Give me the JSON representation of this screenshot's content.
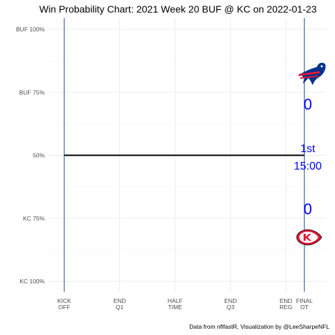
{
  "chart_data": {
    "type": "line",
    "title": "Win Probability Chart: 2021 Week 20 BUF @ KC on 2022-01-23",
    "caption": "Data from nflfastR, Visualization by @LeeSharpeNFL",
    "y_tick_labels": [
      "BUF 100%",
      "BUF 75%",
      "50%",
      "KC 75%",
      "KC 100%"
    ],
    "y_tick_values": [
      100,
      75,
      50,
      25,
      0
    ],
    "ylim": [
      0,
      100
    ],
    "x_ticks": [
      {
        "value": 0,
        "line1": "KICK",
        "line2": "OFF"
      },
      {
        "value": 900,
        "line1": "END",
        "line2": "Q1"
      },
      {
        "value": 1800,
        "line1": "HALF",
        "line2": "TIME"
      },
      {
        "value": 2700,
        "line1": "END",
        "line2": "Q3"
      },
      {
        "value": 3600,
        "line1": "END",
        "line2": "REG"
      },
      {
        "value": 3900,
        "line1": "FINAL",
        "line2": "OT"
      }
    ],
    "xlim": [
      -250,
      4250
    ],
    "vlines_x": [
      0,
      3900
    ],
    "series": [
      {
        "x": [
          0,
          3900
        ],
        "y": [
          50,
          50
        ]
      }
    ],
    "grid": true,
    "team_colors": {
      "BUF": "#00338D",
      "KC": "#E31837"
    }
  },
  "scoreboard": {
    "buf_score": "0",
    "kc_score": "0",
    "quarter": "1st",
    "clock": "15:00",
    "score_color": "#0000ff"
  }
}
